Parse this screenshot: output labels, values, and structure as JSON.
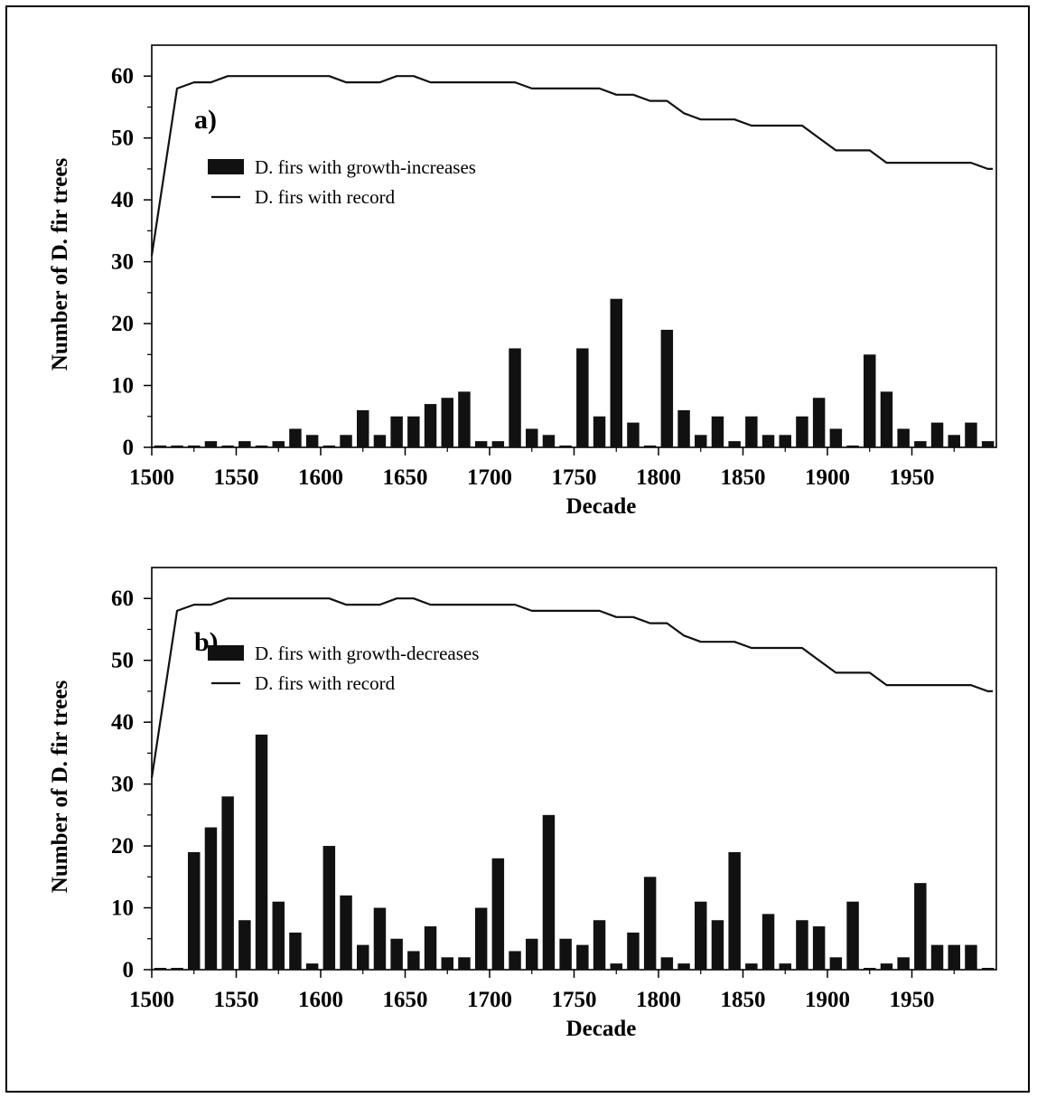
{
  "chart_data": [
    {
      "type": "bar",
      "panel_label": "a)",
      "xlabel": "Decade",
      "ylabel": "Number of D. fir trees",
      "xlim": [
        1500,
        2000
      ],
      "ylim": [
        0,
        65
      ],
      "xticks": [
        1500,
        1550,
        1600,
        1650,
        1700,
        1750,
        1800,
        1850,
        1900,
        1950
      ],
      "yticks": [
        0,
        10,
        20,
        30,
        40,
        50,
        60
      ],
      "legend_position": "upper-left",
      "colors": {
        "bars": "#111111",
        "line": "#111111"
      },
      "series": [
        {
          "name": "D. firs with growth-increases",
          "type": "bar",
          "x": [
            1500,
            1510,
            1520,
            1530,
            1540,
            1550,
            1560,
            1570,
            1580,
            1590,
            1600,
            1610,
            1620,
            1630,
            1640,
            1650,
            1660,
            1670,
            1680,
            1690,
            1700,
            1710,
            1720,
            1730,
            1740,
            1750,
            1760,
            1770,
            1780,
            1790,
            1800,
            1810,
            1820,
            1830,
            1840,
            1850,
            1860,
            1870,
            1880,
            1890,
            1900,
            1910,
            1920,
            1930,
            1940,
            1950,
            1960,
            1970,
            1980,
            1990
          ],
          "values": [
            0,
            0,
            0,
            1,
            0,
            1,
            0,
            1,
            3,
            2,
            0,
            2,
            6,
            2,
            5,
            5,
            7,
            8,
            9,
            1,
            1,
            16,
            3,
            2,
            0,
            16,
            5,
            24,
            4,
            0,
            19,
            6,
            2,
            5,
            1,
            5,
            2,
            2,
            5,
            8,
            3,
            0,
            15,
            9,
            3,
            1,
            4,
            2,
            4,
            1
          ]
        },
        {
          "name": "D. firs with record",
          "type": "line",
          "x": [
            1500,
            1510,
            1520,
            1530,
            1540,
            1550,
            1560,
            1570,
            1580,
            1590,
            1600,
            1610,
            1620,
            1630,
            1640,
            1650,
            1660,
            1670,
            1680,
            1690,
            1700,
            1710,
            1720,
            1730,
            1740,
            1750,
            1760,
            1770,
            1780,
            1790,
            1800,
            1810,
            1820,
            1830,
            1840,
            1850,
            1860,
            1870,
            1880,
            1890,
            1900,
            1910,
            1920,
            1930,
            1940,
            1950,
            1960,
            1970,
            1980,
            1990
          ],
          "values": [
            31,
            58,
            59,
            59,
            60,
            60,
            60,
            60,
            60,
            60,
            60,
            59,
            59,
            59,
            60,
            60,
            59,
            59,
            59,
            59,
            59,
            59,
            58,
            58,
            58,
            58,
            58,
            57,
            57,
            56,
            56,
            54,
            53,
            53,
            53,
            52,
            52,
            52,
            52,
            50,
            48,
            48,
            48,
            46,
            46,
            46,
            46,
            46,
            46,
            45
          ]
        }
      ]
    },
    {
      "type": "bar",
      "panel_label": "b)",
      "xlabel": "Decade",
      "ylabel": "Number of D. fir trees",
      "xlim": [
        1500,
        2000
      ],
      "ylim": [
        0,
        65
      ],
      "xticks": [
        1500,
        1550,
        1600,
        1650,
        1700,
        1750,
        1800,
        1850,
        1900,
        1950
      ],
      "yticks": [
        0,
        10,
        20,
        30,
        40,
        50,
        60
      ],
      "legend_position": "upper-left",
      "colors": {
        "bars": "#111111",
        "line": "#111111"
      },
      "series": [
        {
          "name": "D. firs with growth-decreases",
          "type": "bar",
          "x": [
            1500,
            1510,
            1520,
            1530,
            1540,
            1550,
            1560,
            1570,
            1580,
            1590,
            1600,
            1610,
            1620,
            1630,
            1640,
            1650,
            1660,
            1670,
            1680,
            1690,
            1700,
            1710,
            1720,
            1730,
            1740,
            1750,
            1760,
            1770,
            1780,
            1790,
            1800,
            1810,
            1820,
            1830,
            1840,
            1850,
            1860,
            1870,
            1880,
            1890,
            1900,
            1910,
            1920,
            1930,
            1940,
            1950,
            1960,
            1970,
            1980,
            1990
          ],
          "values": [
            0,
            0,
            19,
            23,
            28,
            8,
            38,
            11,
            6,
            1,
            20,
            12,
            4,
            10,
            5,
            3,
            7,
            2,
            2,
            10,
            18,
            3,
            5,
            25,
            5,
            4,
            8,
            1,
            6,
            15,
            2,
            1,
            11,
            8,
            19,
            1,
            9,
            1,
            8,
            7,
            2,
            11,
            0,
            1,
            2,
            14,
            4,
            4,
            4,
            0
          ]
        },
        {
          "name": "D. firs with record",
          "type": "line",
          "x": [
            1500,
            1510,
            1520,
            1530,
            1540,
            1550,
            1560,
            1570,
            1580,
            1590,
            1600,
            1610,
            1620,
            1630,
            1640,
            1650,
            1660,
            1670,
            1680,
            1690,
            1700,
            1710,
            1720,
            1730,
            1740,
            1750,
            1760,
            1770,
            1780,
            1790,
            1800,
            1810,
            1820,
            1830,
            1840,
            1850,
            1860,
            1870,
            1880,
            1890,
            1900,
            1910,
            1920,
            1930,
            1940,
            1950,
            1960,
            1970,
            1980,
            1990
          ],
          "values": [
            31,
            58,
            59,
            59,
            60,
            60,
            60,
            60,
            60,
            60,
            60,
            59,
            59,
            59,
            60,
            60,
            59,
            59,
            59,
            59,
            59,
            59,
            58,
            58,
            58,
            58,
            58,
            57,
            57,
            56,
            56,
            54,
            53,
            53,
            53,
            52,
            52,
            52,
            52,
            50,
            48,
            48,
            48,
            46,
            46,
            46,
            46,
            46,
            46,
            45
          ]
        }
      ]
    }
  ]
}
